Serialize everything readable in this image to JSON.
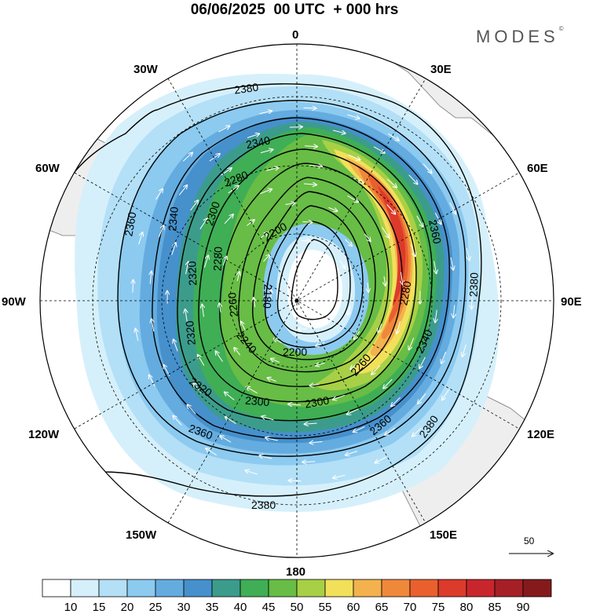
{
  "header": {
    "title": "06/06/2025  00 UTC  + 000 hrs",
    "brand": "MODES",
    "brand_mark": "©"
  },
  "map": {
    "projection": "polar stereographic (south pole)",
    "longitude_labels": {
      "lon_0": "0",
      "lon_30e": "30E",
      "lon_60e": "60E",
      "lon_90e": "90E",
      "lon_120e": "120E",
      "lon_150e": "150E",
      "lon_180": "180",
      "lon_150w": "150W",
      "lon_120w": "120W",
      "lon_90w": "90W",
      "lon_60w": "60W",
      "lon_30w": "30W"
    },
    "wind_speed_shading_levels": [
      10,
      15,
      20,
      25,
      30,
      35,
      40,
      45,
      50,
      55,
      60,
      65,
      70,
      75,
      80,
      85,
      90
    ],
    "height_contours_m": [
      {
        "value": 2180,
        "label": "2180"
      },
      {
        "value": 2200,
        "label": "2200"
      },
      {
        "value": 2240,
        "label": "2240"
      },
      {
        "value": 2260,
        "label": "2260"
      },
      {
        "value": 2280,
        "label": "2280"
      },
      {
        "value": 2300,
        "label": "2300"
      },
      {
        "value": 2320,
        "label": "2320"
      },
      {
        "value": 2340,
        "label": "2340"
      },
      {
        "value": 2360,
        "label": "2360"
      },
      {
        "value": 2380,
        "label": "2380"
      }
    ],
    "contour_labels": {
      "l2380_top": "2380",
      "l2340_top": "2340",
      "l2280_top": "2280",
      "l2300_left": "2300",
      "l2340_left": "2340",
      "l2360_left": "2360",
      "l2320_left": "2320",
      "l2280_left": "2280",
      "l2260_left": "2260",
      "l2240_inner": "2240",
      "l2200_top": "2200",
      "l2180_center": "2180",
      "l2200_bottom": "2200",
      "l2260_right": "2260",
      "l2280_right": "2280",
      "l2360_right": "2360",
      "l2380_right": "2380",
      "l2340_right": "2340",
      "l2300_bottom": "2300",
      "l2300_bottom2": "2300",
      "l2320_bottom": "2320",
      "l2360_bottom": "2360",
      "l2380_bottom_r": "2380",
      "l2360_bottom_l": "2360",
      "l2380_bottom": "2380"
    },
    "reference_vector": {
      "label": "50"
    }
  },
  "colorbar": {
    "colors": [
      "#ffffff",
      "#d6f0fb",
      "#b3e0f7",
      "#8ccaf0",
      "#64acdf",
      "#4690cc",
      "#3c9c8c",
      "#3fae55",
      "#67bd45",
      "#a8d046",
      "#f2e05a",
      "#f3b24d",
      "#f0883a",
      "#e9602e",
      "#dc3a2b",
      "#c8262c",
      "#a61f26",
      "#851a1d"
    ],
    "tick_labels": [
      "10",
      "15",
      "20",
      "25",
      "30",
      "35",
      "40",
      "45",
      "50",
      "55",
      "60",
      "65",
      "70",
      "75",
      "80",
      "85",
      "90"
    ]
  }
}
